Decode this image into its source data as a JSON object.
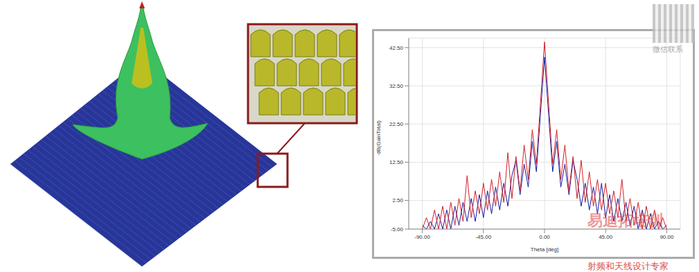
{
  "chart_data": {
    "type": "line",
    "x_label": "Theta [deg]",
    "y_label": "dB(GainTotal)",
    "x": [
      -90,
      -87,
      -84,
      -81,
      -78,
      -75,
      -72,
      -69,
      -66,
      -63,
      -60,
      -57,
      -54,
      -51,
      -48,
      -45,
      -42,
      -39,
      -36,
      -33,
      -30,
      -27,
      -24,
      -21,
      -18,
      -15,
      -12,
      -9,
      -6,
      -3,
      0,
      3,
      6,
      9,
      12,
      15,
      18,
      21,
      24,
      27,
      30,
      33,
      36,
      39,
      42,
      45,
      48,
      51,
      54,
      57,
      60,
      63,
      66,
      69,
      72,
      75,
      78,
      81,
      84,
      87,
      90
    ],
    "series": [
      {
        "color": "#1a1a9a",
        "values": [
          -4,
          -5,
          -3,
          -5,
          -1,
          -5,
          0,
          -5,
          1,
          -4,
          2,
          -3,
          3,
          -3,
          4,
          -2,
          5,
          -1,
          6,
          0,
          7,
          1,
          9,
          13,
          4,
          12,
          6,
          18,
          10,
          25,
          40,
          25,
          10,
          18,
          6,
          12,
          4,
          13,
          8,
          1,
          7,
          0,
          6,
          -1,
          7,
          -2,
          4,
          -3,
          3,
          -3,
          2,
          -4,
          1,
          -5,
          0,
          -5,
          -1,
          -5,
          -3,
          -5,
          -4
        ]
      },
      {
        "color": "#d0202a",
        "values": [
          -5,
          -2,
          -5,
          0,
          -5,
          1,
          -5,
          2,
          -4,
          3,
          -3,
          9,
          -2,
          5,
          -1,
          7,
          0,
          8,
          1,
          10,
          2,
          15,
          3,
          14,
          5,
          17,
          8,
          21,
          12,
          28,
          44,
          28,
          12,
          21,
          8,
          17,
          5,
          14,
          3,
          13,
          2,
          10,
          1,
          8,
          0,
          7,
          -1,
          5,
          -2,
          8,
          -3,
          3,
          -4,
          2,
          -5,
          1,
          -5,
          0,
          -5,
          -2,
          -5
        ]
      }
    ],
    "xlim": [
      -100,
      100
    ],
    "xticks": [
      {
        "value": -90,
        "label": "-90.00"
      },
      {
        "value": -45,
        "label": "-45.00"
      },
      {
        "value": 0,
        "label": "0.00"
      },
      {
        "value": 45,
        "label": "45.00"
      },
      {
        "value": 90,
        "label": "90.00"
      }
    ],
    "ylim": [
      -5,
      45
    ],
    "yticks": [
      {
        "value": -5,
        "label": "-5.00"
      },
      {
        "value": 2.5,
        "label": "2.50"
      },
      {
        "value": 12.5,
        "label": "12.50"
      },
      {
        "value": 22.5,
        "label": "22.50"
      },
      {
        "value": 32.5,
        "label": "32.50"
      },
      {
        "value": 42.5,
        "label": "42.50"
      }
    ],
    "grid": true,
    "annotations": [
      "微信联系",
      "易迪拓培训",
      "射频和天线设计专家"
    ]
  }
}
